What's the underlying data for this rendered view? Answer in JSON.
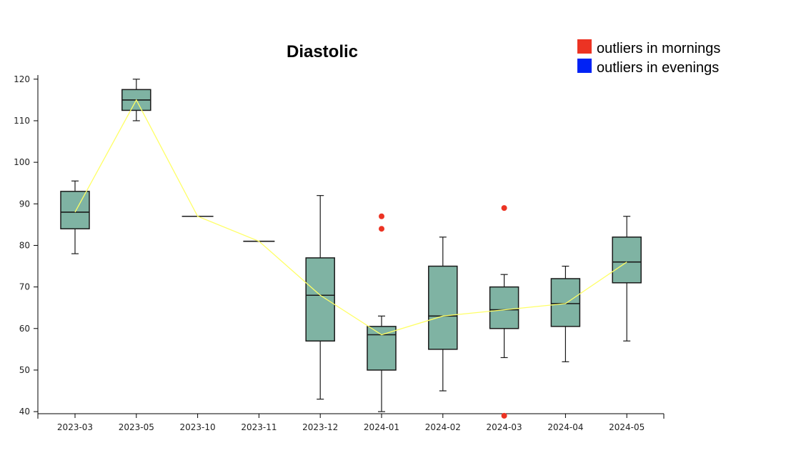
{
  "colors": {
    "box_fill": "#7fb3a3",
    "box_stroke": "#1a1a1a",
    "median_line": "#ffff66",
    "outlier_morning": "#ec3323",
    "outlier_evening": "#0022f5",
    "axis": "#000000"
  },
  "legend": [
    {
      "label": "outliers in mornings",
      "color": "#ec3323"
    },
    {
      "label": "outliers in evenings",
      "color": "#0022f5"
    }
  ],
  "chart_data": {
    "type": "box",
    "title": "Diastolic",
    "xlabel": "",
    "ylabel": "",
    "ylim": [
      39.5,
      121
    ],
    "yticks": [
      40,
      50,
      60,
      70,
      80,
      90,
      100,
      110,
      120
    ],
    "categories": [
      "2023-03",
      "2023-05",
      "2023-10",
      "2023-11",
      "2023-12",
      "2024-01",
      "2024-02",
      "2024-03",
      "2024-04",
      "2024-05"
    ],
    "boxes": [
      {
        "category": "2023-03",
        "min": 78,
        "q1": 84,
        "median": 88,
        "q3": 93,
        "max": 95.5
      },
      {
        "category": "2023-05",
        "min": 110,
        "q1": 112.5,
        "median": 115,
        "q3": 117.5,
        "max": 120
      },
      {
        "category": "2023-10",
        "min": 87,
        "q1": 87,
        "median": 87,
        "q3": 87,
        "max": 87
      },
      {
        "category": "2023-11",
        "min": 81,
        "q1": 81,
        "median": 81,
        "q3": 81,
        "max": 81
      },
      {
        "category": "2023-12",
        "min": 43,
        "q1": 57,
        "median": 68,
        "q3": 77,
        "max": 92
      },
      {
        "category": "2024-01",
        "min": 40,
        "q1": 50,
        "median": 58.5,
        "q3": 60.5,
        "max": 63
      },
      {
        "category": "2024-02",
        "min": 45,
        "q1": 55,
        "median": 63,
        "q3": 75,
        "max": 82
      },
      {
        "category": "2024-03",
        "min": 53,
        "q1": 60,
        "median": 64.5,
        "q3": 70,
        "max": 73
      },
      {
        "category": "2024-04",
        "min": 52,
        "q1": 60.5,
        "median": 66,
        "q3": 72,
        "max": 75
      },
      {
        "category": "2024-05",
        "min": 57,
        "q1": 71,
        "median": 76,
        "q3": 82,
        "max": 87
      }
    ],
    "median_trend": [
      88,
      115,
      87,
      81,
      68,
      58.5,
      63,
      64.5,
      66,
      76
    ],
    "outliers": [
      {
        "category": "2024-01",
        "value": 87,
        "series": "morning"
      },
      {
        "category": "2024-01",
        "value": 84,
        "series": "morning"
      },
      {
        "category": "2024-03",
        "value": 89,
        "series": "morning"
      },
      {
        "category": "2024-03",
        "value": 39,
        "series": "morning"
      }
    ]
  }
}
